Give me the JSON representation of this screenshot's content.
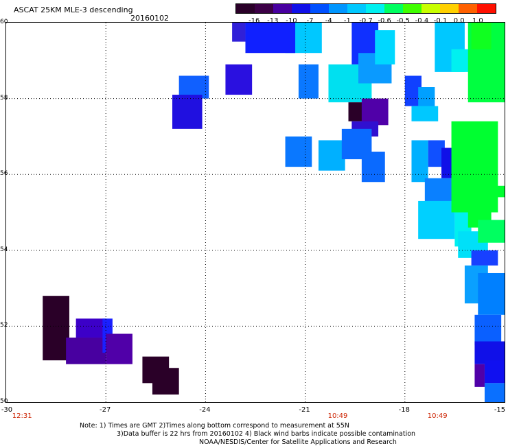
{
  "header": {
    "title": "ASCAT 25KM MLE-3 descending",
    "date": "20160102"
  },
  "colorbar": {
    "labels": [
      "-16",
      "-13",
      "-10",
      "-7",
      "-4",
      "-1",
      "-0.7",
      "-0.6",
      "-0.5",
      "-0.4",
      "-0.1",
      "0.0",
      "1.0"
    ],
    "colors": [
      "#2a0028",
      "#3c0046",
      "#4800a0",
      "#1010e8",
      "#0050ff",
      "#0096ff",
      "#00c8ff",
      "#00f0f0",
      "#00ff60",
      "#40ff00",
      "#c8ff00",
      "#ffd000",
      "#ff6000",
      "#ff1000"
    ]
  },
  "axes": {
    "x_ticks": [
      "-30",
      "-27",
      "-24",
      "-21",
      "-18",
      "-15"
    ],
    "y_ticks": [
      "60",
      "58",
      "56",
      "54",
      "52",
      "50"
    ],
    "time_labels": [
      "12:31",
      "10:49",
      "10:49"
    ]
  },
  "notes": {
    "line1": "Note: 1) Times are GMT 2)Times along bottom correspond to measurement at 55N",
    "line2": "3)Data buffer is 22 hrs from 20160102 4) Black wind barbs indicate possible contamination",
    "line3": "NOAA/NESDIS/Center for Satellite Applications and Research"
  },
  "chart_data": {
    "type": "heatmap",
    "title": "ASCAT 25KM MLE-3 descending",
    "date": "20160102",
    "x_range": [
      -30,
      -15
    ],
    "y_range": [
      50,
      60
    ],
    "x_ticks": [
      -30,
      -27,
      -24,
      -21,
      -18,
      -15
    ],
    "y_ticks": [
      50,
      52,
      54,
      56,
      58,
      60
    ],
    "grid": true,
    "colorbar_levels": [
      -16,
      -13,
      -10,
      -7,
      -4,
      -1,
      -0.7,
      -0.6,
      -0.5,
      -0.4,
      -0.1,
      0.0,
      1.0
    ],
    "swath_times": [
      {
        "lon": -29.5,
        "time": "12:31"
      },
      {
        "lon": -20.0,
        "time": "10:49"
      },
      {
        "lon": -17.0,
        "time": "10:49"
      }
    ],
    "cells": [
      {
        "lon0": -28.9,
        "lon1": -28.1,
        "lat0": 51.1,
        "lat1": 52.8,
        "c": "#2a0028"
      },
      {
        "lon0": -28.2,
        "lon1": -27.0,
        "lat0": 51.0,
        "lat1": 51.7,
        "c": "#4800a0"
      },
      {
        "lon0": -27.9,
        "lon1": -27.0,
        "lat0": 51.7,
        "lat1": 52.2,
        "c": "#3c00c8"
      },
      {
        "lon0": -27.1,
        "lon1": -26.8,
        "lat0": 51.3,
        "lat1": 52.2,
        "c": "#1a20ff"
      },
      {
        "lon0": -27.0,
        "lon1": -26.2,
        "lat0": 51.0,
        "lat1": 51.8,
        "c": "#5000a8"
      },
      {
        "lon0": -25.9,
        "lon1": -25.1,
        "lat0": 50.5,
        "lat1": 51.2,
        "c": "#2a0028"
      },
      {
        "lon0": -25.6,
        "lon1": -24.8,
        "lat0": 50.2,
        "lat1": 50.9,
        "c": "#2a0028"
      },
      {
        "lon0": -24.8,
        "lon1": -23.9,
        "lat0": 58.0,
        "lat1": 58.6,
        "c": "#1060ff"
      },
      {
        "lon0": -25.0,
        "lon1": -24.1,
        "lat0": 57.2,
        "lat1": 58.1,
        "c": "#2010e0"
      },
      {
        "lon0": -23.4,
        "lon1": -22.6,
        "lat0": 58.1,
        "lat1": 58.9,
        "c": "#2a10e0"
      },
      {
        "lon0": -21.6,
        "lon1": -20.8,
        "lat0": 56.2,
        "lat1": 57.0,
        "c": "#0a78ff"
      },
      {
        "lon0": -21.2,
        "lon1": -20.6,
        "lat0": 58.0,
        "lat1": 58.9,
        "c": "#0a78ff"
      },
      {
        "lon0": -20.6,
        "lon1": -19.8,
        "lat0": 56.1,
        "lat1": 56.9,
        "c": "#00b0ff"
      },
      {
        "lon0": -20.3,
        "lon1": -19.0,
        "lat0": 57.9,
        "lat1": 58.9,
        "c": "#00e0f0"
      },
      {
        "lon0": -19.7,
        "lon1": -19.0,
        "lat0": 57.4,
        "lat1": 57.9,
        "c": "#2a0028"
      },
      {
        "lon0": -19.3,
        "lon1": -18.5,
        "lat0": 57.3,
        "lat1": 58.0,
        "c": "#5000a8"
      },
      {
        "lon0": -19.6,
        "lon1": -18.8,
        "lat0": 57.0,
        "lat1": 57.4,
        "c": "#3010d0"
      },
      {
        "lon0": -19.3,
        "lon1": -18.6,
        "lat0": 55.8,
        "lat1": 56.6,
        "c": "#0a6aff"
      },
      {
        "lon0": -19.9,
        "lon1": -19.0,
        "lat0": 56.4,
        "lat1": 57.2,
        "c": "#0a6aff"
      },
      {
        "lon0": -21.6,
        "lon1": -20.5,
        "lat0": 59.2,
        "lat1": 60.0,
        "c": "#00c8ff"
      },
      {
        "lon0": -19.6,
        "lon1": -18.8,
        "lat0": 58.9,
        "lat1": 60.0,
        "c": "#1030ff"
      },
      {
        "lon0": -19.4,
        "lon1": -18.4,
        "lat0": 58.4,
        "lat1": 59.2,
        "c": "#0a9aff"
      },
      {
        "lon0": -18.9,
        "lon1": -18.3,
        "lat0": 58.9,
        "lat1": 59.8,
        "c": "#00d8ff"
      },
      {
        "lon0": -22.8,
        "lon1": -21.3,
        "lat0": 59.2,
        "lat1": 60.0,
        "c": "#1020ff"
      },
      {
        "lon0": -23.2,
        "lon1": -22.8,
        "lat0": 59.5,
        "lat1": 60.0,
        "c": "#3020d8"
      },
      {
        "lon0": -18.0,
        "lon1": -17.5,
        "lat0": 57.8,
        "lat1": 58.6,
        "c": "#1040ff"
      },
      {
        "lon0": -17.6,
        "lon1": -17.1,
        "lat0": 57.6,
        "lat1": 58.3,
        "c": "#00a0ff"
      },
      {
        "lon0": -17.8,
        "lon1": -17.0,
        "lat0": 57.4,
        "lat1": 57.8,
        "c": "#00c8ff"
      },
      {
        "lon0": -17.8,
        "lon1": -17.3,
        "lat0": 55.8,
        "lat1": 56.9,
        "c": "#00b0ff"
      },
      {
        "lon0": -17.3,
        "lon1": -16.8,
        "lat0": 56.2,
        "lat1": 56.9,
        "c": "#1050ff"
      },
      {
        "lon0": -16.9,
        "lon1": -16.4,
        "lat0": 55.9,
        "lat1": 56.7,
        "c": "#1010e8"
      },
      {
        "lon0": -17.4,
        "lon1": -16.3,
        "lat0": 55.2,
        "lat1": 55.9,
        "c": "#0a80ff"
      },
      {
        "lon0": -17.6,
        "lon1": -16.5,
        "lat0": 54.3,
        "lat1": 55.3,
        "c": "#00d0ff"
      },
      {
        "lon0": -16.5,
        "lon1": -16.0,
        "lat0": 54.1,
        "lat1": 55.1,
        "c": "#00f0f0"
      },
      {
        "lon0": -16.4,
        "lon1": -15.5,
        "lat0": 53.8,
        "lat1": 54.5,
        "c": "#00e0f8"
      },
      {
        "lon0": -16.0,
        "lon1": -15.2,
        "lat0": 53.6,
        "lat1": 54.0,
        "c": "#1840ff"
      },
      {
        "lon0": -16.2,
        "lon1": -15.5,
        "lat0": 52.6,
        "lat1": 53.6,
        "c": "#0aa0ff"
      },
      {
        "lon0": -15.8,
        "lon1": -15.0,
        "lat0": 52.3,
        "lat1": 53.4,
        "c": "#0080ff"
      },
      {
        "lon0": -15.9,
        "lon1": -15.1,
        "lat0": 51.5,
        "lat1": 52.3,
        "c": "#0a60ff"
      },
      {
        "lon0": -15.9,
        "lon1": -15.0,
        "lat0": 51.0,
        "lat1": 51.6,
        "c": "#1010e8"
      },
      {
        "lon0": -15.9,
        "lon1": -15.6,
        "lat0": 50.4,
        "lat1": 51.0,
        "c": "#5000a8"
      },
      {
        "lon0": -15.6,
        "lon1": -15.0,
        "lat0": 50.5,
        "lat1": 51.1,
        "c": "#1010f0"
      },
      {
        "lon0": -15.6,
        "lon1": -15.0,
        "lat0": 50.0,
        "lat1": 50.5,
        "c": "#0a70ff"
      },
      {
        "lon0": -17.1,
        "lon1": -16.2,
        "lat0": 58.7,
        "lat1": 60.0,
        "c": "#00c8ff"
      },
      {
        "lon0": -16.6,
        "lon1": -16.0,
        "lat0": 58.7,
        "lat1": 59.3,
        "c": "#00f0f0"
      },
      {
        "lon0": -16.1,
        "lon1": -15.0,
        "lat0": 57.9,
        "lat1": 60.0,
        "c": "#00ff40"
      },
      {
        "lon0": -16.0,
        "lon1": -15.4,
        "lat0": 59.3,
        "lat1": 60.0,
        "c": "#10ff20"
      },
      {
        "lon0": -16.6,
        "lon1": -15.2,
        "lat0": 55.0,
        "lat1": 57.4,
        "c": "#00ff30"
      },
      {
        "lon0": -15.6,
        "lon1": -15.0,
        "lat0": 55.4,
        "lat1": 55.7,
        "c": "#00ff30"
      },
      {
        "lon0": -16.1,
        "lon1": -15.4,
        "lat0": 54.6,
        "lat1": 55.1,
        "c": "#00ff30"
      },
      {
        "lon0": -15.8,
        "lon1": -15.0,
        "lat0": 54.2,
        "lat1": 54.8,
        "c": "#00ff60"
      }
    ]
  }
}
